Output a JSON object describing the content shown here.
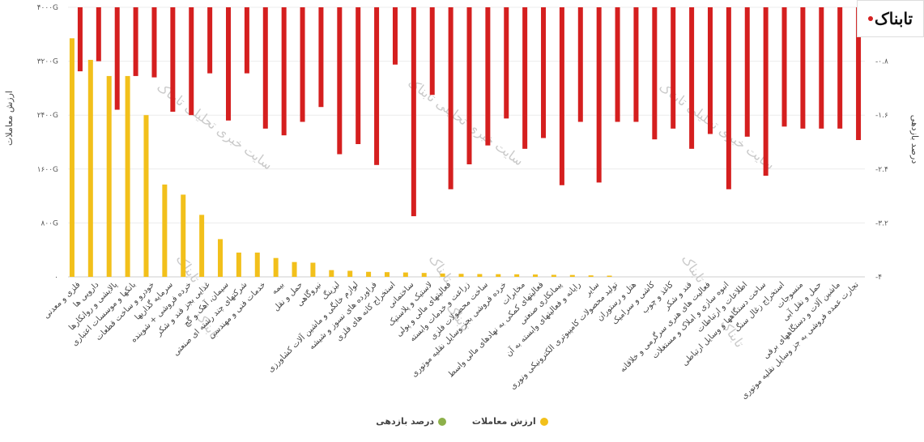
{
  "logo": {
    "text": "تابناک"
  },
  "chart_data": {
    "type": "bar",
    "categories": [
      "فلزی و معدنی",
      "دارویی ها",
      "پالایشی و روانکارها",
      "بانکها و موسسات اعتباری",
      "خودرو و ساخت قطعات",
      "سرمایه گذاریها",
      "خرده فروشی + شوینده",
      "غذایی بجز قند و شکر",
      "سیمان، آهک و گچ",
      "شرکتهای چند رشته ای صنعتی",
      "خدمات فنی و مهندسی",
      "بیمه",
      "حمل و نقل",
      "نیروگاهی",
      "لیزینگ",
      "لوازم خانگی و ماشین آلات کشاورزی",
      "فراورده های نسوز و شیشه",
      "استخراج کانه های فلزی",
      "ساختمانی",
      "لاستیک و پلاستیک",
      "فعالیتهای مالی و پولی",
      "زراعت و خدمات وابسته",
      "ساخت محصولات فلزی",
      "خرده فروشی بجز وسایل نقلیه موتوری",
      "مخابرات",
      "فعالیتهای کمکی به نهادهای مالی واسط",
      "پیمانکاری صنعتی",
      "رایانه و فعالیتهای وابسته به آن",
      "سایر",
      "تولید محصولات کامپیوتری الکترونیکی ونوری",
      "هتل و رستوران",
      "کاشی و سرامیک",
      "کاغذ و چوب",
      "قند و شکر",
      "فعالیت های هنری سرگرمی و خلاقانه",
      "انبوه سازی و املاک و مستغلات",
      "اطلاعات و ارتباطات",
      "ساخت دستگاهها و وسایل ارتباطی",
      "استخراج زغال سنگ",
      "منسوجات",
      "حمل و نقل آبی",
      "ماشین آلات و دستگاههای برقی",
      "تجارت عمده فروشی به جز وسایل نقلیه موتوری"
    ],
    "series": [
      {
        "name": "ارزش معاملات",
        "color": "#f2c01b",
        "axis": "left",
        "values": [
          3540,
          3220,
          2980,
          2980,
          2400,
          1370,
          1220,
          920,
          560,
          360,
          360,
          280,
          220,
          210,
          100,
          90,
          75,
          70,
          65,
          58,
          50,
          45,
          42,
          40,
          38,
          35,
          30,
          28,
          22,
          18,
          0,
          0,
          0,
          0,
          0,
          0,
          0,
          0,
          0,
          0,
          0,
          0,
          0
        ]
      },
      {
        "name": "درصد بازدهی",
        "color": "#8db04a",
        "axis": "right",
        "values": [
          -0.95,
          -0.8,
          -1.52,
          -1.02,
          -1.04,
          -1.55,
          -1.6,
          -0.98,
          -1.68,
          -0.98,
          -1.8,
          -1.9,
          -1.7,
          -1.48,
          -2.18,
          -2.03,
          -2.34,
          -0.85,
          -3.1,
          -1.3,
          -2.7,
          -2.33,
          -2.05,
          -1.65,
          -2.1,
          -1.94,
          -2.64,
          -1.7,
          -2.6,
          -1.7,
          -1.7,
          -1.96,
          -1.8,
          -2.1,
          -1.88,
          -2.7,
          -1.92,
          -2.5,
          -1.77,
          -1.8,
          -1.8,
          -1.8,
          -1.97
        ]
      }
    ],
    "y_left": {
      "label": "ارزش معاملات",
      "ylim": [
        0,
        4000
      ],
      "ticks": [
        0,
        800,
        1600,
        2400,
        3200,
        4000
      ],
      "tick_labels": [
        "۰",
        "۸۰۰G",
        "۱۶۰۰G",
        "۲۴۰۰G",
        "۳۲۰۰G",
        "۴۰۰۰G"
      ]
    },
    "y_right": {
      "label": "درصد بازدهی",
      "ylim": [
        -4,
        0
      ],
      "ticks": [
        0,
        -0.8,
        -1.6,
        -2.4,
        -3.2,
        -4
      ],
      "tick_labels": [
        "۰",
        "-۰.۸",
        "-۱.۶",
        "-۲.۴",
        "-۳.۲",
        "-۴"
      ]
    },
    "negative_color": "#d51f1f",
    "grid": true,
    "legend_position": "bottom"
  },
  "watermarks": [
    "سایت خبری تحلیلی تابناک",
    "تابناک"
  ]
}
